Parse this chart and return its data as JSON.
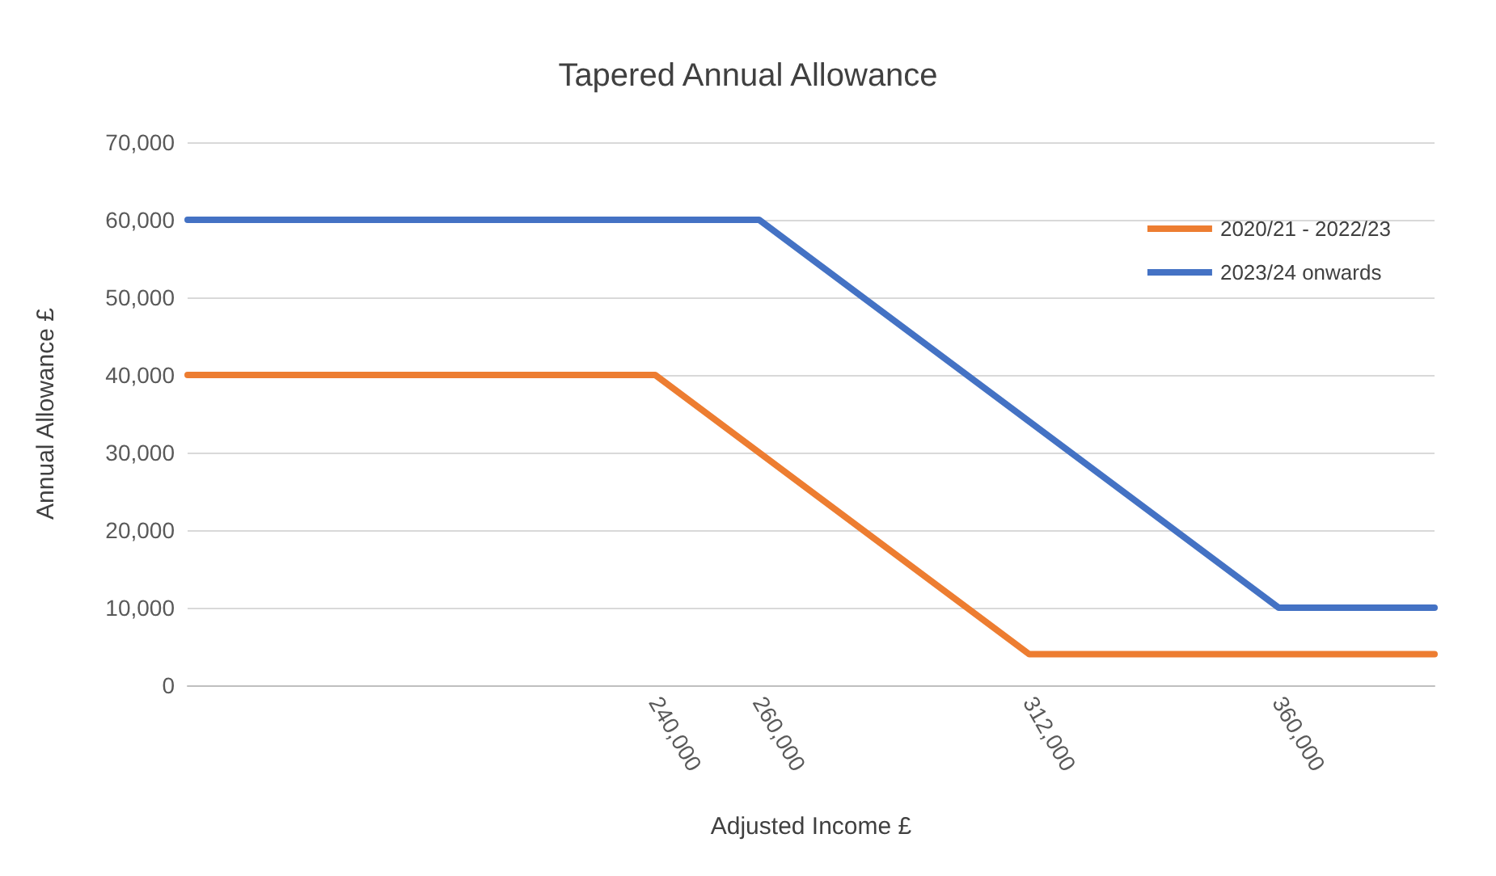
{
  "chart_data": {
    "type": "line",
    "title": "Tapered Annual Allowance",
    "xlabel": "Adjusted Income £",
    "ylabel": "Annual Allowance £",
    "xlim": [
      150000,
      390000
    ],
    "xticks": [
      {
        "value": 240000,
        "label": "240,000"
      },
      {
        "value": 260000,
        "label": "260,000"
      },
      {
        "value": 312000,
        "label": "312,000"
      },
      {
        "value": 360000,
        "label": "360,000"
      }
    ],
    "ylim": [
      0,
      70000
    ],
    "yticks": [
      0,
      {
        "value": 10000,
        "label": "10,000"
      },
      {
        "value": 20000,
        "label": "20,000"
      },
      {
        "value": 30000,
        "label": "30,000"
      },
      {
        "value": 40000,
        "label": "40,000"
      },
      {
        "value": 50000,
        "label": "50,000"
      },
      {
        "value": 60000,
        "label": "60,000"
      },
      {
        "value": 70000,
        "label": "70,000"
      }
    ],
    "series": [
      {
        "name": "2020/21 - 2022/23",
        "color": "#ed7d31",
        "x": [
          150000,
          240000,
          312000,
          390000
        ],
        "values": [
          40000,
          40000,
          4000,
          4000
        ]
      },
      {
        "name": "2023/24 onwards",
        "color": "#4472c4",
        "x": [
          150000,
          260000,
          360000,
          390000
        ],
        "values": [
          60000,
          60000,
          10000,
          10000
        ]
      }
    ],
    "grid": "y",
    "legend": "top right",
    "marker": "none",
    "line_style": "solid"
  }
}
